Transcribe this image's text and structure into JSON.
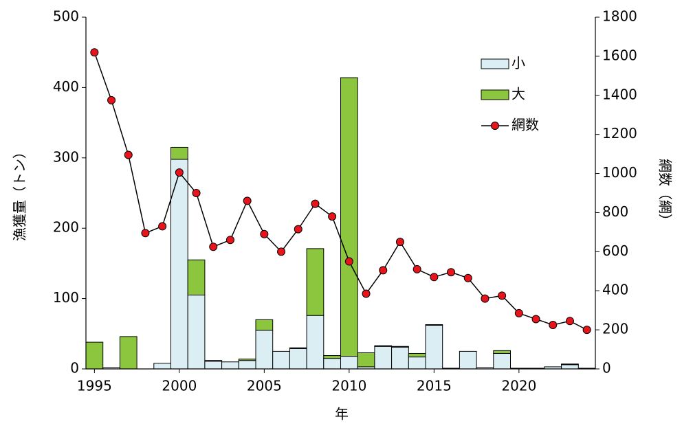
{
  "chart_data": {
    "type": "bar",
    "stacked": true,
    "x_label": "年",
    "y_label": "漁獲量（トン）",
    "y2_label": "網数（網）",
    "x": [
      1995,
      1996,
      1997,
      1998,
      1999,
      2000,
      2001,
      2002,
      2003,
      2004,
      2005,
      2006,
      2007,
      2008,
      2009,
      2010,
      2011,
      2012,
      2013,
      2014,
      2015,
      2016,
      2017,
      2018,
      2019,
      2020,
      2021,
      2022,
      2023,
      2024
    ],
    "xlim": [
      1994.5,
      2024.5
    ],
    "xticks": [
      1995,
      2000,
      2005,
      2010,
      2015,
      2020
    ],
    "ylim": [
      0,
      500
    ],
    "yticks": [
      0,
      100,
      200,
      300,
      400,
      500
    ],
    "y2lim": [
      0,
      1800
    ],
    "y2ticks": [
      0,
      200,
      400,
      600,
      800,
      1000,
      1200,
      1400,
      1600,
      1800
    ],
    "legend": "upper right",
    "series": [
      {
        "name": "小",
        "type": "bar",
        "color": "#dbeef4",
        "values": [
          0,
          2,
          0,
          0,
          8,
          298,
          105,
          11,
          10,
          12,
          55,
          25,
          29,
          76,
          15,
          18,
          3,
          32,
          31,
          17,
          62,
          1,
          25,
          2,
          22,
          1,
          1,
          3,
          6,
          1
        ]
      },
      {
        "name": "大",
        "type": "bar",
        "color": "#8cc63f",
        "values": [
          38,
          0,
          46,
          0,
          0,
          17,
          50,
          1,
          0,
          2,
          15,
          0,
          1,
          95,
          4,
          396,
          20,
          1,
          1,
          5,
          1,
          0,
          0,
          0,
          4,
          0,
          0,
          0,
          1,
          0
        ]
      },
      {
        "name": "網数",
        "type": "line",
        "axis": "y2",
        "color": "#e8141b",
        "values": [
          1620,
          1375,
          1095,
          695,
          730,
          1005,
          900,
          625,
          660,
          860,
          690,
          600,
          715,
          845,
          780,
          550,
          385,
          505,
          650,
          510,
          470,
          495,
          465,
          360,
          375,
          285,
          255,
          225,
          245,
          200
        ]
      }
    ]
  }
}
